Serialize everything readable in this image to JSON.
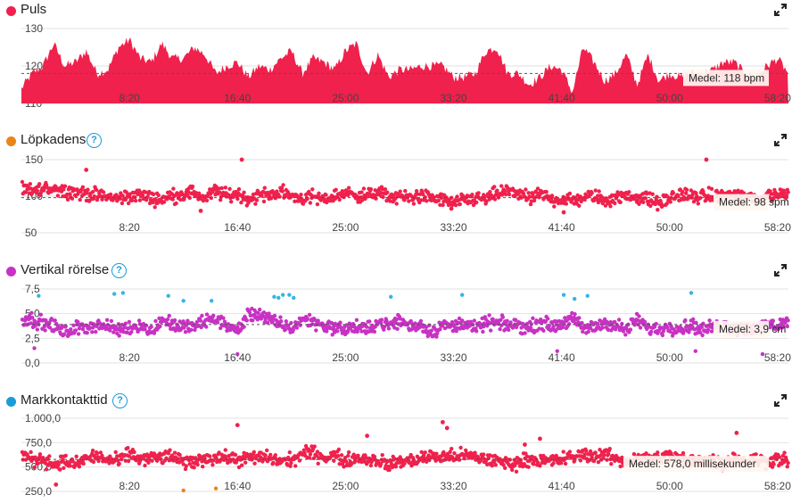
{
  "colors": {
    "pulse": "#f0214c",
    "cadence_dot": "#e8861a",
    "vertical_dot": "#c832c4",
    "contact_dot": "#1a9bd7",
    "points_red": "#f0214c",
    "points_magenta": "#c832c4",
    "points_blue": "#34b5e6",
    "points_orange": "#e8861a",
    "help": "#1a9bd7",
    "grid": "#e2e2e2",
    "avg_line": "#555555"
  },
  "panels": [
    {
      "title": "Puls",
      "icon": "heart-rate-dot",
      "has_help": false,
      "avg_label": "Medel: 118 bpm"
    },
    {
      "title": "Löpkadens",
      "icon": "cadence-dot",
      "has_help": true,
      "avg_label": "Medel: 98 spm"
    },
    {
      "title": "Vertikal rörelse",
      "icon": "vertical-oscillation-dot",
      "has_help": true,
      "avg_label": "Medel: 3,9 cm"
    },
    {
      "title": "Markkontakttid",
      "icon": "ground-contact-dot",
      "has_help": true,
      "avg_label": "Medel: 578,0 millisekunder"
    }
  ],
  "help_label": "?",
  "chart_data": [
    {
      "type": "area",
      "title": "Puls",
      "x_ticks": [
        "8:20",
        "16:40",
        "25:00",
        "33:20",
        "41:40",
        "50:00",
        "58:20"
      ],
      "x_tick_seconds": [
        500,
        1000,
        1500,
        2000,
        2500,
        3000,
        3500
      ],
      "x_range_seconds": [
        0,
        3550
      ],
      "y_ticks": [
        "130",
        "120",
        "110"
      ],
      "y_tick_values": [
        130,
        120,
        110
      ],
      "ylim": [
        110,
        130
      ],
      "average": 118,
      "series_x_seconds": [
        0,
        50,
        100,
        150,
        200,
        250,
        300,
        350,
        400,
        450,
        500,
        550,
        600,
        650,
        700,
        750,
        800,
        850,
        900,
        950,
        1000,
        1050,
        1100,
        1150,
        1200,
        1250,
        1300,
        1350,
        1400,
        1450,
        1500,
        1550,
        1600,
        1650,
        1700,
        1750,
        1800,
        1850,
        1900,
        1950,
        2000,
        2050,
        2100,
        2150,
        2200,
        2250,
        2300,
        2350,
        2400,
        2450,
        2500,
        2550,
        2600,
        2650,
        2700,
        2750,
        2800,
        2850,
        2900,
        2950,
        3000,
        3050,
        3100,
        3150,
        3200,
        3250,
        3300,
        3350,
        3400,
        3450,
        3500,
        3550
      ],
      "series_values": [
        114,
        118,
        120,
        126,
        120,
        121,
        124,
        118,
        119,
        125,
        127,
        122,
        121,
        126,
        122,
        122,
        125,
        123,
        118,
        120,
        121,
        117,
        120,
        119,
        122,
        124,
        118,
        122,
        121,
        119,
        124,
        126,
        118,
        123,
        117,
        119,
        119,
        120,
        120,
        120,
        117,
        117,
        118,
        124,
        125,
        118,
        118,
        115,
        117,
        120,
        119,
        113,
        125,
        121,
        116,
        118,
        123,
        115,
        123,
        116,
        118,
        117,
        118,
        118,
        119,
        121,
        121,
        118,
        117,
        120,
        122,
        118
      ]
    },
    {
      "type": "scatter",
      "title": "Löpkadens",
      "x_ticks": [
        "8:20",
        "16:40",
        "25:00",
        "33:20",
        "41:40",
        "50:00",
        "58:20"
      ],
      "x_tick_seconds": [
        500,
        1000,
        1500,
        2000,
        2500,
        3000,
        3500
      ],
      "x_range_seconds": [
        0,
        3550
      ],
      "y_ticks": [
        "150",
        "100",
        "50"
      ],
      "y_tick_values": [
        150,
        100,
        50
      ],
      "ylim": [
        50,
        150
      ],
      "average": 98,
      "series_x_seconds": [
        0,
        50,
        100,
        150,
        200,
        250,
        300,
        350,
        400,
        450,
        500,
        550,
        600,
        650,
        700,
        750,
        800,
        850,
        900,
        950,
        1000,
        1050,
        1100,
        1150,
        1200,
        1250,
        1300,
        1350,
        1400,
        1450,
        1500,
        1550,
        1600,
        1650,
        1700,
        1750,
        1800,
        1850,
        1900,
        1950,
        2000,
        2050,
        2100,
        2150,
        2200,
        2250,
        2300,
        2350,
        2400,
        2450,
        2500,
        2550,
        2600,
        2650,
        2700,
        2750,
        2800,
        2850,
        2900,
        2950,
        3000,
        3050,
        3100,
        3150,
        3200,
        3250,
        3300,
        3350,
        3400,
        3450,
        3500,
        3550
      ],
      "series_values": [
        107,
        108,
        109,
        112,
        108,
        106,
        103,
        101,
        99,
        97,
        100,
        102,
        97,
        96,
        101,
        103,
        105,
        97,
        108,
        100,
        104,
        96,
        101,
        103,
        105,
        101,
        97,
        99,
        95,
        101,
        104,
        102,
        100,
        106,
        99,
        99,
        98,
        101,
        97,
        95,
        90,
        94,
        97,
        96,
        103,
        107,
        105,
        95,
        103,
        96,
        96,
        94,
        98,
        100,
        94,
        98,
        99,
        100,
        96,
        90,
        97,
        103,
        99,
        100,
        100,
        101,
        102,
        99,
        97,
        101,
        103,
        104
      ],
      "outliers": [
        [
          1020,
          150
        ],
        [
          3170,
          150
        ],
        [
          830,
          80
        ],
        [
          1990,
          83
        ],
        [
          2510,
          78
        ],
        [
          300,
          136
        ]
      ]
    },
    {
      "type": "scatter",
      "title": "Vertikal rörelse",
      "x_ticks": [
        "8:20",
        "16:40",
        "25:00",
        "33:20",
        "41:40",
        "50:00",
        "58:20"
      ],
      "x_tick_seconds": [
        500,
        1000,
        1500,
        2000,
        2500,
        3000,
        3500
      ],
      "x_range_seconds": [
        0,
        3550
      ],
      "y_ticks": [
        "7,5",
        "5,0",
        "2,5",
        "0,0"
      ],
      "y_tick_values": [
        7.5,
        5.0,
        2.5,
        0.0
      ],
      "ylim": [
        0,
        7.5
      ],
      "average": 3.9,
      "series_x_seconds": [
        0,
        50,
        100,
        150,
        200,
        250,
        300,
        350,
        400,
        450,
        500,
        550,
        600,
        650,
        700,
        750,
        800,
        850,
        900,
        950,
        1000,
        1050,
        1100,
        1150,
        1200,
        1250,
        1300,
        1350,
        1400,
        1450,
        1500,
        1550,
        1600,
        1650,
        1700,
        1750,
        1800,
        1850,
        1900,
        1950,
        2000,
        2050,
        2100,
        2150,
        2200,
        2250,
        2300,
        2350,
        2400,
        2450,
        2500,
        2550,
        2600,
        2650,
        2700,
        2750,
        2800,
        2850,
        2900,
        2950,
        3000,
        3050,
        3100,
        3150,
        3200,
        3250,
        3300,
        3350,
        3400,
        3450,
        3500,
        3550
      ],
      "series_values": [
        4.5,
        4.4,
        4.0,
        3.8,
        3.0,
        3.5,
        3.7,
        3.9,
        3.6,
        3.4,
        3.6,
        3.9,
        3.1,
        4.4,
        3.9,
        3.6,
        3.7,
        4.2,
        4.5,
        3.8,
        3.2,
        4.9,
        5.0,
        4.3,
        3.9,
        3.5,
        4.4,
        4.2,
        3.8,
        3.6,
        3.4,
        3.7,
        3.3,
        4.2,
        3.8,
        4.3,
        3.7,
        3.9,
        3.1,
        3.9,
        3.6,
        4.2,
        3.4,
        4.1,
        4.0,
        3.8,
        3.9,
        3.5,
        4.2,
        3.7,
        4.0,
        4.5,
        3.5,
        3.6,
        4.1,
        3.8,
        3.3,
        4.4,
        3.5,
        3.4,
        3.7,
        3.5,
        3.9,
        3.3,
        3.7,
        3.9,
        3.6,
        3.4,
        3.5,
        3.9,
        3.8,
        4.2
      ],
      "outliers_blue": [
        [
          80,
          6.8
        ],
        [
          430,
          7.0
        ],
        [
          470,
          7.1
        ],
        [
          680,
          6.8
        ],
        [
          750,
          6.3
        ],
        [
          880,
          6.3
        ],
        [
          1170,
          6.7
        ],
        [
          1210,
          6.9
        ],
        [
          1240,
          6.9
        ],
        [
          1190,
          6.6
        ],
        [
          1260,
          6.6
        ],
        [
          1710,
          6.7
        ],
        [
          2040,
          6.9
        ],
        [
          2510,
          6.9
        ],
        [
          2560,
          6.5
        ],
        [
          2620,
          6.8
        ],
        [
          3100,
          7.1
        ]
      ],
      "outliers_low": [
        [
          60,
          1.5
        ],
        [
          1000,
          0.9
        ],
        [
          2480,
          1.2
        ],
        [
          3120,
          1.2
        ],
        [
          3430,
          0.9
        ]
      ]
    },
    {
      "type": "scatter",
      "title": "Markkontakttid",
      "x_ticks": [
        "8:20",
        "16:40",
        "25:00",
        "33:20",
        "41:40",
        "50:00",
        "58:20"
      ],
      "x_tick_seconds": [
        500,
        1000,
        1500,
        2000,
        2500,
        3000,
        3500
      ],
      "x_range_seconds": [
        0,
        3550
      ],
      "y_ticks": [
        "1.000,0",
        "750,0",
        "500,0",
        "250,0"
      ],
      "y_tick_values": [
        1000,
        750,
        500,
        250
      ],
      "ylim": [
        250,
        1000
      ],
      "average": 578.0,
      "series_x_seconds": [
        0,
        50,
        100,
        150,
        200,
        250,
        300,
        350,
        400,
        450,
        500,
        550,
        600,
        650,
        700,
        750,
        800,
        850,
        900,
        950,
        1000,
        1050,
        1100,
        1150,
        1200,
        1250,
        1300,
        1350,
        1400,
        1450,
        1500,
        1550,
        1600,
        1650,
        1700,
        1750,
        1800,
        1850,
        1900,
        1950,
        2000,
        2050,
        2100,
        2150,
        2200,
        2250,
        2300,
        2350,
        2400,
        2450,
        2500,
        2550,
        2600,
        2650,
        2700,
        2750,
        2800,
        2850,
        2900,
        2950,
        3000,
        3050,
        3100,
        3150,
        3200,
        3250,
        3300,
        3350,
        3400,
        3450,
        3500,
        3550
      ],
      "series_values": [
        640,
        570,
        590,
        525,
        560,
        520,
        590,
        610,
        570,
        560,
        640,
        580,
        590,
        600,
        610,
        540,
        560,
        590,
        600,
        590,
        580,
        590,
        600,
        590,
        560,
        570,
        630,
        650,
        600,
        620,
        560,
        600,
        580,
        570,
        520,
        560,
        560,
        590,
        610,
        600,
        610,
        620,
        600,
        580,
        560,
        540,
        540,
        590,
        560,
        560,
        580,
        600,
        630,
        610,
        630,
        580,
        560,
        590,
        580,
        600,
        620,
        580,
        560,
        590,
        560,
        540,
        600,
        560,
        580,
        560,
        590,
        550
      ],
      "outliers": [
        [
          160,
          320
        ],
        [
          1000,
          930
        ],
        [
          1600,
          820
        ],
        [
          1950,
          960
        ],
        [
          1970,
          900
        ],
        [
          2400,
          790
        ],
        [
          3310,
          850
        ],
        [
          2330,
          730
        ]
      ],
      "outliers_orange": [
        [
          750,
          260
        ],
        [
          900,
          280
        ]
      ]
    }
  ]
}
